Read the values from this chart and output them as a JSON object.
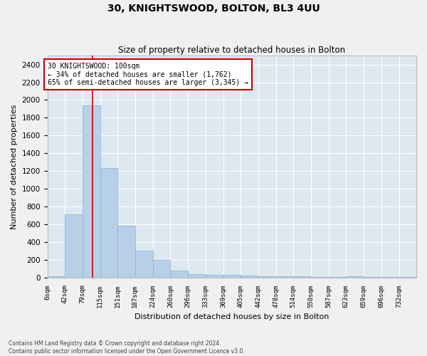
{
  "title": "30, KNIGHTSWOOD, BOLTON, BL3 4UU",
  "subtitle": "Size of property relative to detached houses in Bolton",
  "xlabel": "Distribution of detached houses by size in Bolton",
  "ylabel": "Number of detached properties",
  "bar_color": "#b8cfe8",
  "bar_edge_color": "#8aafd4",
  "background_color": "#dde8f0",
  "fig_background_color": "#f0f0f0",
  "grid_color": "#ffffff",
  "annotation_text": "30 KNIGHTSWOOD: 100sqm\n← 34% of detached houses are smaller (1,762)\n65% of semi-detached houses are larger (3,345) →",
  "annotation_box_color": "#cc0000",
  "vline_color": "#cc0000",
  "vline_x": 100,
  "footnote": "Contains HM Land Registry data © Crown copyright and database right 2024.\nContains public sector information licensed under the Open Government Licence v3.0.",
  "bin_edges": [
    6,
    42,
    79,
    115,
    151,
    187,
    224,
    260,
    296,
    333,
    369,
    405,
    442,
    478,
    514,
    550,
    587,
    623,
    659,
    696,
    732,
    768
  ],
  "bar_heights": [
    15,
    710,
    1940,
    1230,
    580,
    305,
    200,
    80,
    40,
    30,
    30,
    25,
    15,
    10,
    15,
    5,
    5,
    15,
    5,
    5,
    5
  ],
  "ylim": [
    0,
    2500
  ],
  "yticks": [
    0,
    200,
    400,
    600,
    800,
    1000,
    1200,
    1400,
    1600,
    1800,
    2000,
    2200,
    2400
  ],
  "xtick_labels": [
    "6sqm",
    "42sqm",
    "79sqm",
    "115sqm",
    "151sqm",
    "187sqm",
    "224sqm",
    "260sqm",
    "296sqm",
    "333sqm",
    "369sqm",
    "405sqm",
    "442sqm",
    "478sqm",
    "514sqm",
    "550sqm",
    "587sqm",
    "623sqm",
    "659sqm",
    "696sqm",
    "732sqm"
  ]
}
